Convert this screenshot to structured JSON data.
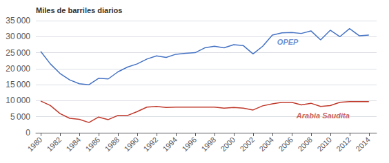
{
  "chart_data": {
    "type": "line",
    "ylabel": "Miles de barriles diarios",
    "x": [
      1980,
      1981,
      1982,
      1983,
      1984,
      1985,
      1986,
      1987,
      1988,
      1989,
      1990,
      1991,
      1992,
      1993,
      1994,
      1995,
      1996,
      1997,
      1998,
      1999,
      2000,
      2001,
      2002,
      2003,
      2004,
      2005,
      2006,
      2007,
      2008,
      2009,
      2010,
      2011,
      2012,
      2013,
      2014
    ],
    "series": [
      {
        "name": "OPEP",
        "color": "#4472C4",
        "values": [
          25400,
          21500,
          18500,
          16500,
          15300,
          15000,
          17000,
          16800,
          19000,
          20500,
          21500,
          23000,
          24000,
          23500,
          24500,
          24800,
          25000,
          26500,
          27000,
          26500,
          27500,
          27200,
          24600,
          27000,
          30500,
          31200,
          31300,
          31000,
          31800,
          29000,
          32000,
          30000,
          32500,
          30300,
          30500
        ]
      },
      {
        "name": "Arabia Saudita",
        "color": "#C0392B",
        "values": [
          9900,
          8500,
          6000,
          4500,
          4200,
          3200,
          4900,
          4100,
          5400,
          5400,
          6600,
          8000,
          8200,
          7900,
          8000,
          8000,
          8000,
          8000,
          8000,
          7700,
          7900,
          7700,
          7100,
          8400,
          9000,
          9500,
          9500,
          8700,
          9200,
          8200,
          8500,
          9500,
          9700,
          9700,
          9700
        ]
      }
    ],
    "annotations": [
      {
        "text": "OPEP",
        "x": 2004.5,
        "y": 27200,
        "color": "#4472C4"
      },
      {
        "text": "Arabia Saudita",
        "x": 2006.5,
        "y": 4200,
        "color": "#C0392B"
      }
    ],
    "xlim": [
      1979.5,
      2014.8
    ],
    "xticks": [
      1980,
      1982,
      1984,
      1986,
      1988,
      1990,
      1992,
      1994,
      1996,
      1998,
      2000,
      2002,
      2004,
      2006,
      2008,
      2010,
      2012,
      2014
    ],
    "ylim": [
      0,
      35000
    ],
    "yticks": [
      0,
      {
        "value": 5000,
        "label": "5 000"
      },
      {
        "value": 10000,
        "label": "10 000"
      },
      {
        "value": 15000,
        "label": "15 000"
      },
      {
        "value": 20000,
        "label": "20 000"
      },
      {
        "value": 25000,
        "label": "25 000"
      },
      {
        "value": 30000,
        "label": "30 000"
      },
      {
        "value": 35000,
        "label": "35 000"
      }
    ],
    "grid": true
  }
}
